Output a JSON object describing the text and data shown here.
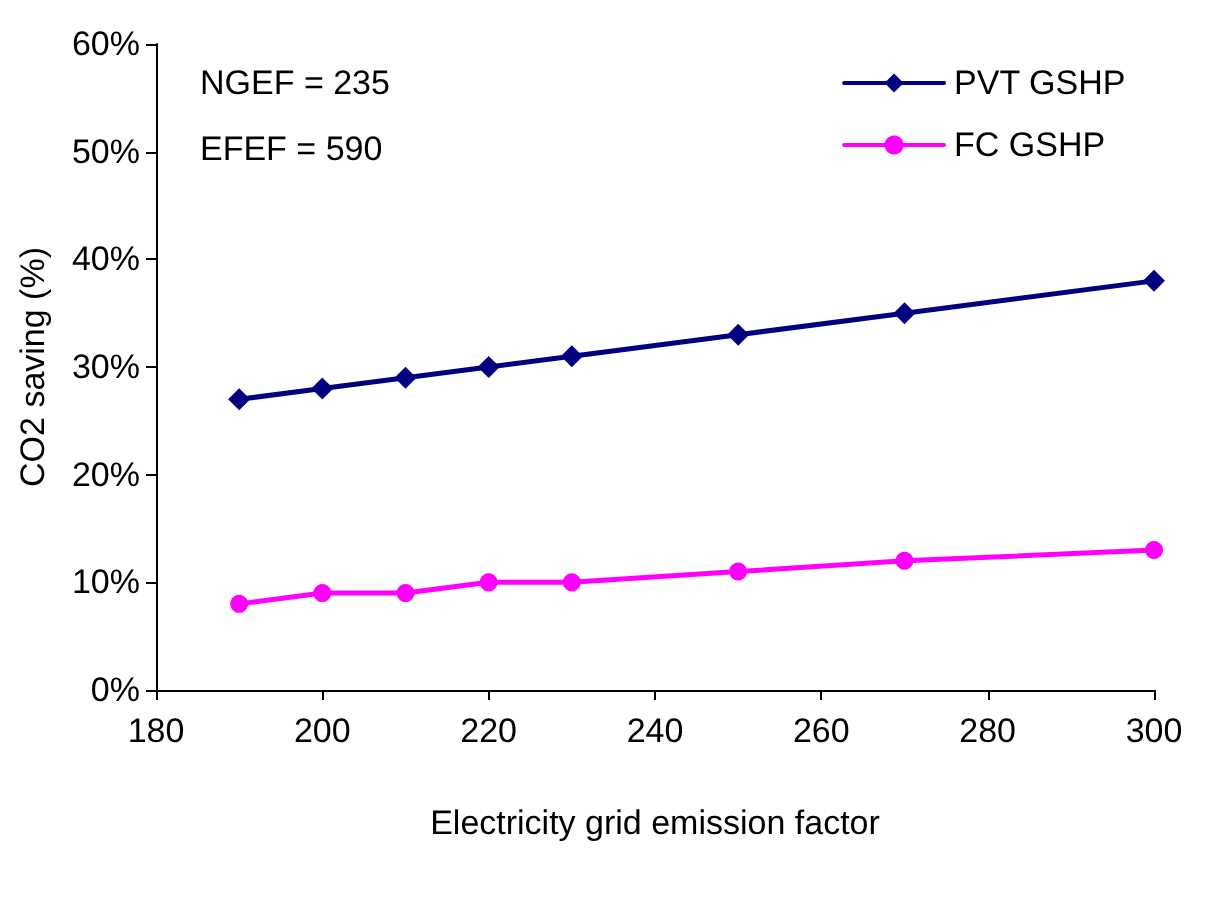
{
  "chart_data": {
    "type": "line",
    "xlabel": "Electricity grid emission factor",
    "ylabel": "CO2 saving (%)",
    "x": [
      190,
      200,
      210,
      220,
      230,
      250,
      270,
      300
    ],
    "series": [
      {
        "name": "PVT GSHP",
        "color": "#000080",
        "marker": "diamond",
        "values": [
          27,
          28,
          29,
          30,
          31,
          33,
          35,
          38
        ]
      },
      {
        "name": "FC GSHP",
        "color": "#ff00ff",
        "marker": "circle",
        "values": [
          8,
          9,
          9,
          10,
          10,
          11,
          12,
          13
        ]
      }
    ],
    "xlim": [
      180,
      300
    ],
    "xticks": [
      180,
      200,
      220,
      240,
      260,
      280,
      300
    ],
    "ylim": [
      0,
      60
    ],
    "yticks": [
      {
        "value": 0,
        "label": "0%"
      },
      {
        "value": 10,
        "label": "10%"
      },
      {
        "value": 20,
        "label": "20%"
      },
      {
        "value": 30,
        "label": "30%"
      },
      {
        "value": 40,
        "label": "40%"
      },
      {
        "value": 50,
        "label": "50%"
      },
      {
        "value": 60,
        "label": "60%"
      }
    ],
    "annotations": [
      "NGEF = 235",
      "EFEF = 590"
    ],
    "legend": "top right",
    "grid": false,
    "line_style": "solid"
  }
}
